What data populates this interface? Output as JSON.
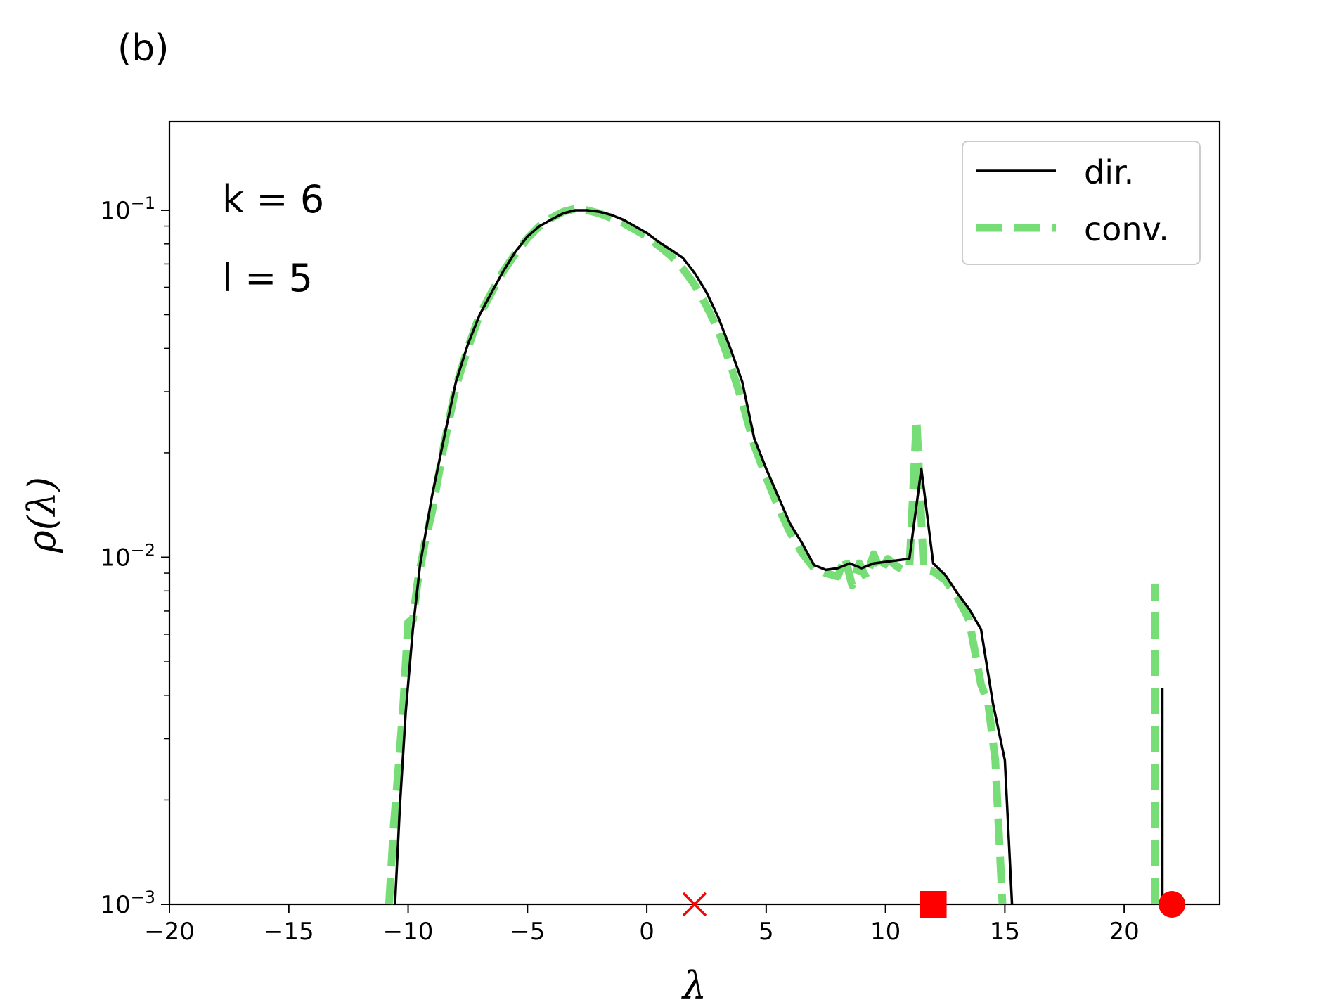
{
  "panel_label": "(b)",
  "colors": {
    "dir": "#000000",
    "conv": "#77dd77",
    "markers": "#ff0000"
  },
  "chart_data": {
    "type": "line",
    "title": "",
    "xlabel": "λ",
    "ylabel": "ρ(λ)",
    "xlim": [
      -20,
      24
    ],
    "ylim": [
      0.001,
      0.18
    ],
    "yscale": "log",
    "xticks": [
      -20,
      -15,
      -10,
      -5,
      0,
      5,
      10,
      15,
      20
    ],
    "xtick_labels": [
      "−20",
      "−15",
      "−10",
      "−5",
      "0",
      "5",
      "10",
      "15",
      "20"
    ],
    "yticks": [
      {
        "value": 0.1,
        "base": "10",
        "exp": "−1"
      },
      {
        "value": 0.01,
        "base": "10",
        "exp": "−2"
      },
      {
        "value": 0.001,
        "base": "10",
        "exp": "−3"
      }
    ],
    "annotations": [
      "k = 6",
      "l = 5"
    ],
    "legend": {
      "position": "top-right",
      "entries": [
        "dir.",
        "conv."
      ]
    },
    "series": [
      {
        "name": "dir.",
        "style": "solid",
        "color": "#000000",
        "segments": [
          [
            [
              -10.55,
              0.001
            ],
            [
              -10.35,
              0.0019
            ],
            [
              -10.1,
              0.0036
            ],
            [
              -9.8,
              0.0062
            ],
            [
              -9.5,
              0.0095
            ],
            [
              -9.0,
              0.015
            ],
            [
              -8.5,
              0.022
            ],
            [
              -8.0,
              0.032
            ],
            [
              -7.5,
              0.041
            ],
            [
              -7.0,
              0.05
            ],
            [
              -6.5,
              0.058
            ],
            [
              -6.0,
              0.067
            ],
            [
              -5.5,
              0.076
            ],
            [
              -5.0,
              0.084
            ],
            [
              -4.5,
              0.09
            ],
            [
              -4.0,
              0.094
            ],
            [
              -3.5,
              0.098
            ],
            [
              -3.0,
              0.1
            ],
            [
              -2.5,
              0.1
            ],
            [
              -2.0,
              0.099
            ],
            [
              -1.5,
              0.097
            ],
            [
              -1.0,
              0.094
            ],
            [
              -0.5,
              0.09
            ],
            [
              0.0,
              0.086
            ],
            [
              0.5,
              0.081
            ],
            [
              1.0,
              0.077
            ],
            [
              1.5,
              0.073
            ],
            [
              2.0,
              0.066
            ],
            [
              2.5,
              0.058
            ],
            [
              3.0,
              0.049
            ],
            [
              3.5,
              0.04
            ],
            [
              4.0,
              0.032
            ],
            [
              4.5,
              0.022
            ],
            [
              5.0,
              0.018
            ],
            [
              5.5,
              0.015
            ],
            [
              6.0,
              0.0125
            ],
            [
              6.5,
              0.011
            ],
            [
              7.0,
              0.0095
            ],
            [
              7.5,
              0.0092
            ],
            [
              8.0,
              0.0093
            ],
            [
              8.5,
              0.0096
            ],
            [
              9.0,
              0.0093
            ],
            [
              9.5,
              0.0096
            ],
            [
              10.0,
              0.0097
            ],
            [
              10.5,
              0.0098
            ],
            [
              11.0,
              0.0099
            ],
            [
              11.5,
              0.018
            ],
            [
              12.0,
              0.0096
            ],
            [
              12.5,
              0.0089
            ],
            [
              13.0,
              0.0079
            ],
            [
              13.5,
              0.0071
            ],
            [
              14.0,
              0.0062
            ],
            [
              14.5,
              0.0038
            ],
            [
              15.0,
              0.0026
            ],
            [
              15.3,
              0.001
            ]
          ],
          [
            [
              21.6,
              0.001
            ],
            [
              21.6,
              0.0042
            ]
          ]
        ]
      },
      {
        "name": "conv.",
        "style": "dashed",
        "color": "#77dd77",
        "segments": [
          [
            [
              -10.8,
              0.001
            ],
            [
              -10.6,
              0.0017
            ],
            [
              -10.4,
              0.0025
            ],
            [
              -10.2,
              0.0038
            ],
            [
              -10.0,
              0.0065
            ],
            [
              -9.8,
              0.0066
            ],
            [
              -9.6,
              0.0085
            ],
            [
              -9.3,
              0.011
            ],
            [
              -9.0,
              0.0135
            ],
            [
              -8.5,
              0.021
            ],
            [
              -8.0,
              0.031
            ],
            [
              -7.5,
              0.04
            ],
            [
              -7.0,
              0.05
            ],
            [
              -6.5,
              0.058
            ],
            [
              -6.0,
              0.067
            ],
            [
              -5.5,
              0.075
            ],
            [
              -5.0,
              0.083
            ],
            [
              -4.5,
              0.09
            ],
            [
              -4.0,
              0.095
            ],
            [
              -3.5,
              0.099
            ],
            [
              -3.0,
              0.101
            ],
            [
              -2.5,
              0.1
            ],
            [
              -2.0,
              0.098
            ],
            [
              -1.5,
              0.095
            ],
            [
              -1.0,
              0.092
            ],
            [
              -0.5,
              0.088
            ],
            [
              0.0,
              0.084
            ],
            [
              0.5,
              0.079
            ],
            [
              1.0,
              0.074
            ],
            [
              1.5,
              0.068
            ],
            [
              2.0,
              0.061
            ],
            [
              2.5,
              0.053
            ],
            [
              3.0,
              0.045
            ],
            [
              3.5,
              0.036
            ],
            [
              4.0,
              0.028
            ],
            [
              4.5,
              0.021
            ],
            [
              5.0,
              0.017
            ],
            [
              5.5,
              0.014
            ],
            [
              6.0,
              0.0118
            ],
            [
              6.5,
              0.0103
            ],
            [
              7.0,
              0.0093
            ],
            [
              7.5,
              0.009
            ],
            [
              8.0,
              0.0088
            ],
            [
              8.3,
              0.01
            ],
            [
              8.6,
              0.0083
            ],
            [
              8.9,
              0.0096
            ],
            [
              9.2,
              0.0087
            ],
            [
              9.5,
              0.0102
            ],
            [
              9.8,
              0.0091
            ],
            [
              10.1,
              0.0099
            ],
            [
              10.4,
              0.0095
            ],
            [
              10.7,
              0.0092
            ],
            [
              11.0,
              0.0093
            ],
            [
              11.3,
              0.025
            ],
            [
              11.6,
              0.0092
            ],
            [
              12.0,
              0.0091
            ],
            [
              12.5,
              0.0086
            ],
            [
              13.0,
              0.0077
            ],
            [
              13.5,
              0.0066
            ],
            [
              14.0,
              0.0043
            ],
            [
              14.3,
              0.0038
            ],
            [
              14.6,
              0.0026
            ],
            [
              14.9,
              0.001
            ]
          ],
          [
            [
              21.3,
              0.001
            ],
            [
              21.3,
              0.0084
            ]
          ]
        ]
      }
    ],
    "markers": [
      {
        "symbol": "x",
        "x": 2.0,
        "y": 0.001,
        "color": "#ff0000"
      },
      {
        "symbol": "square",
        "x": 12.0,
        "y": 0.001,
        "color": "#ff0000"
      },
      {
        "symbol": "circle",
        "x": 22.0,
        "y": 0.001,
        "color": "#ff0000"
      }
    ]
  }
}
